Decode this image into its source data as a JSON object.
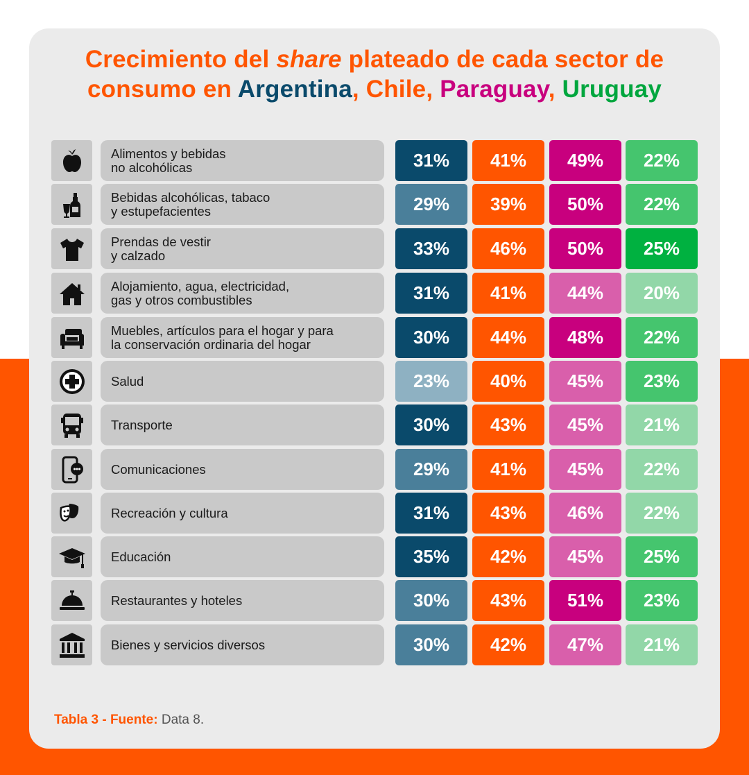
{
  "title": {
    "line1_pre": "Crecimiento del ",
    "line1_em": "share",
    "line1_post": " plateado de cada sector de",
    "line2_pre": "consumo en ",
    "countries": [
      {
        "name": "Argentina",
        "color": "#0a4a6b"
      },
      {
        "name": "Chile",
        "color": "#ff5500"
      },
      {
        "name": "Paraguay",
        "color": "#c8007e"
      },
      {
        "name": "Uruguay",
        "color": "#00a63e"
      }
    ],
    "sep": ", "
  },
  "palette": {
    "argentina": {
      "high": "#0a4a6b",
      "mid": "#4a7f9a",
      "low": "#8eb1c2"
    },
    "chile": {
      "high": "#ff5500"
    },
    "paraguay": {
      "high": "#c8007e",
      "mid": "#d95fab"
    },
    "uruguay": {
      "high": "#00b140",
      "mid": "#45c56e",
      "low": "#92d7a8"
    }
  },
  "chart_data": {
    "type": "table",
    "columns": [
      "Argentina",
      "Chile",
      "Paraguay",
      "Uruguay"
    ],
    "rows": [
      {
        "icon": "apple-icon",
        "label": "Alimentos y bebidas\nno alcohólicas",
        "values": [
          "31%",
          "41%",
          "49%",
          "22%"
        ],
        "shades": [
          "high",
          "high",
          "high",
          "mid"
        ]
      },
      {
        "icon": "wine-bottle-icon",
        "label": "Bebidas alcohólicas, tabaco\ny estupefacientes",
        "values": [
          "29%",
          "39%",
          "50%",
          "22%"
        ],
        "shades": [
          "mid",
          "high",
          "high",
          "mid"
        ]
      },
      {
        "icon": "tshirt-icon",
        "label": "Prendas de vestir\ny calzado",
        "values": [
          "33%",
          "46%",
          "50%",
          "25%"
        ],
        "shades": [
          "high",
          "high",
          "high",
          "high"
        ]
      },
      {
        "icon": "house-icon",
        "label": "Alojamiento, agua, electricidad,\ngas y otros combustibles",
        "values": [
          "31%",
          "41%",
          "44%",
          "20%"
        ],
        "shades": [
          "high",
          "high",
          "mid",
          "low"
        ]
      },
      {
        "icon": "armchair-icon",
        "label": "Muebles, artículos para el hogar y para\nla conservación ordinaria del hogar",
        "values": [
          "30%",
          "44%",
          "48%",
          "22%"
        ],
        "shades": [
          "high",
          "high",
          "high",
          "mid"
        ]
      },
      {
        "icon": "health-cross-icon",
        "label": "Salud",
        "values": [
          "23%",
          "40%",
          "45%",
          "23%"
        ],
        "shades": [
          "low",
          "high",
          "mid",
          "mid"
        ]
      },
      {
        "icon": "bus-icon",
        "label": "Transporte",
        "values": [
          "30%",
          "43%",
          "45%",
          "21%"
        ],
        "shades": [
          "high",
          "high",
          "mid",
          "low"
        ]
      },
      {
        "icon": "phone-chat-icon",
        "label": "Comunicaciones",
        "values": [
          "29%",
          "41%",
          "45%",
          "22%"
        ],
        "shades": [
          "mid",
          "high",
          "mid",
          "low"
        ]
      },
      {
        "icon": "theater-masks-icon",
        "label": "Recreación y cultura",
        "values": [
          "31%",
          "43%",
          "46%",
          "22%"
        ],
        "shades": [
          "high",
          "high",
          "mid",
          "low"
        ]
      },
      {
        "icon": "graduation-cap-icon",
        "label": "Educación",
        "values": [
          "35%",
          "42%",
          "45%",
          "25%"
        ],
        "shades": [
          "high",
          "high",
          "mid",
          "mid"
        ]
      },
      {
        "icon": "service-bell-icon",
        "label": "Restaurantes y hoteles",
        "values": [
          "30%",
          "43%",
          "51%",
          "23%"
        ],
        "shades": [
          "mid",
          "high",
          "high",
          "mid"
        ]
      },
      {
        "icon": "bank-building-icon",
        "label": "Bienes y servicios diversos",
        "values": [
          "30%",
          "42%",
          "47%",
          "21%"
        ],
        "shades": [
          "mid",
          "high",
          "mid",
          "low"
        ]
      }
    ]
  },
  "footer": {
    "label": "Tabla 3 - Fuente:",
    "text": " Data 8."
  }
}
